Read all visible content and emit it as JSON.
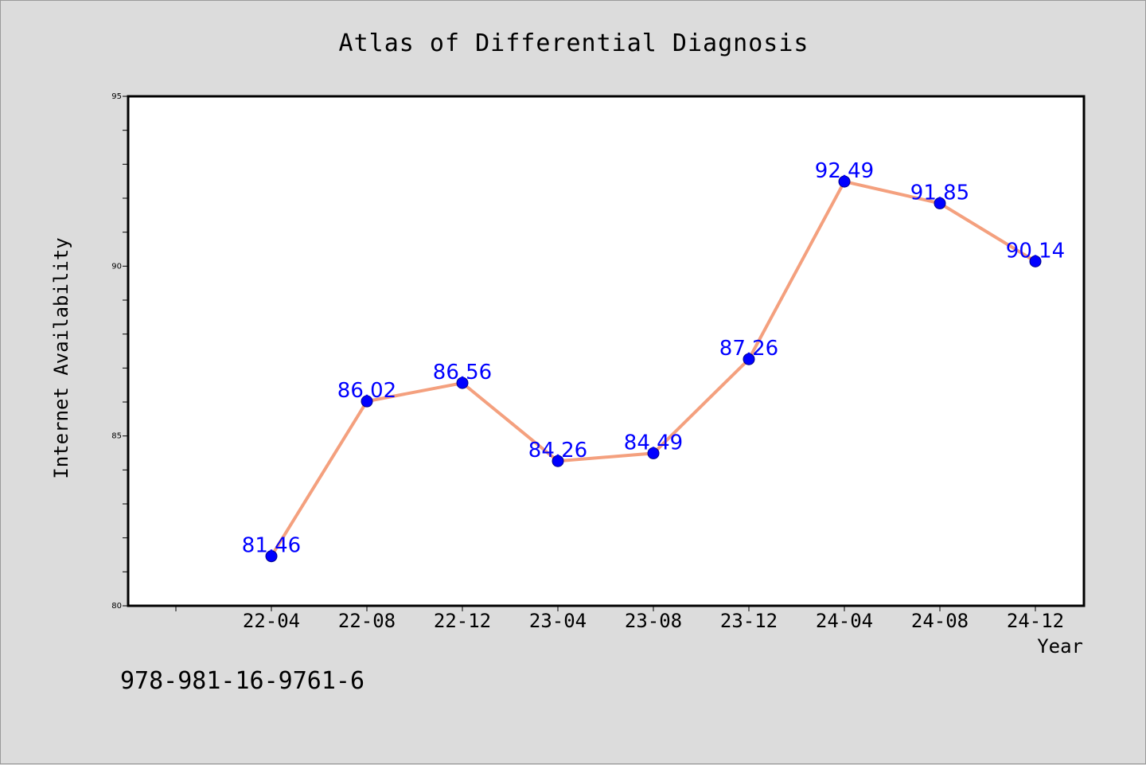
{
  "chart_data": {
    "type": "line",
    "title": "Atlas of Differential Diagnosis",
    "xlabel": "Year",
    "ylabel": "Internet Availability",
    "categories": [
      "22-04",
      "22-08",
      "22-12",
      "23-04",
      "23-08",
      "23-12",
      "24-04",
      "24-08",
      "24-12"
    ],
    "series": [
      {
        "values": [
          81.46,
          86.02,
          86.56,
          84.26,
          84.49,
          87.26,
          92.49,
          91.85,
          90.14
        ]
      }
    ],
    "data_labels": [
      "81.46",
      "86.02",
      "86.56",
      "84.26",
      "84.49",
      "87.26",
      "92.49",
      "91.85",
      "90.14"
    ],
    "ylim": [
      80,
      95
    ],
    "yticks": [
      "80",
      "85",
      "90",
      "95"
    ],
    "line_color": "#f4a07e",
    "marker_color": "#0000ff",
    "label_color": "#0000ff",
    "background_color": "#dcdcdc",
    "grid": false,
    "legend": "none"
  },
  "footer": {
    "isbn": "978-981-16-9761-6"
  }
}
